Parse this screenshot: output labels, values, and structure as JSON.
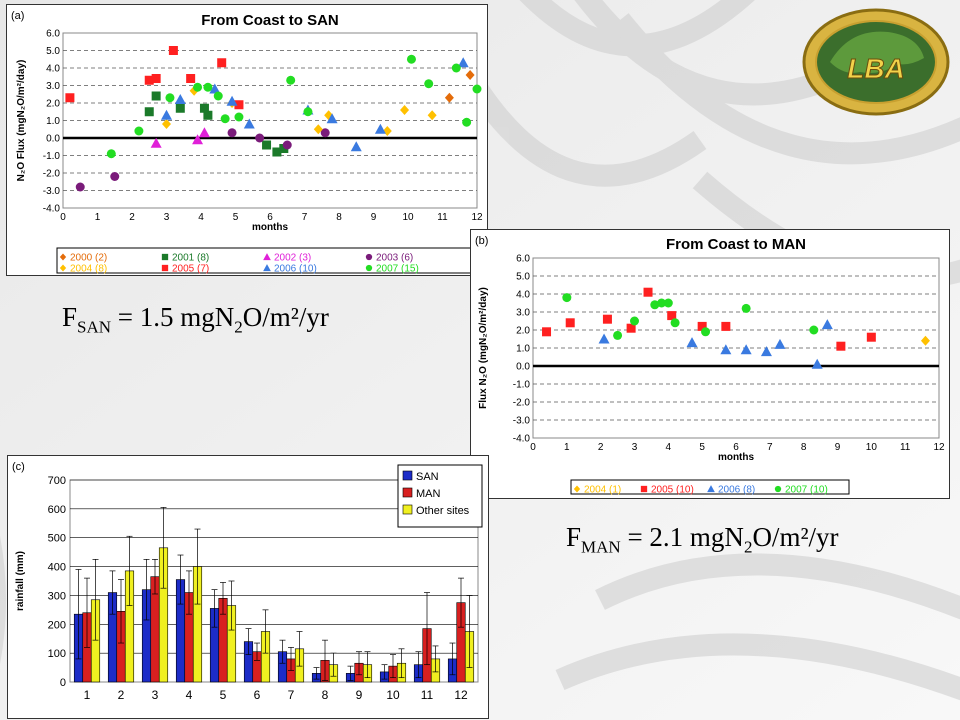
{
  "colors": {
    "s2000": "#e46c0a",
    "s2001": "#1b7a2a",
    "s2002": "#e020d8",
    "s2003": "#7a1b7a",
    "s2004": "#ffc000",
    "s2005": "#ff2020",
    "s2006": "#3a7ae0",
    "s2007": "#22dd22",
    "rain_san": "#1c2cc8",
    "rain_man": "#d82020",
    "rain_other": "#f0f020"
  },
  "logo": {
    "text": "LBA",
    "icon": "lba-amazon-logo"
  },
  "flux_san": {
    "main": "F",
    "sub": "SAN",
    "value": " = 1.5 mgN",
    "sub2": "2",
    "unit": "O/m²/yr"
  },
  "flux_man": {
    "main": "F",
    "sub": "MAN",
    "value": " = 2.1 mgN",
    "sub2": "2",
    "unit": "O/m²/yr"
  },
  "chart_data": [
    {
      "type": "scatter",
      "panel_label": "(a)",
      "title": "From Coast to SAN",
      "xlabel": "months",
      "ylabel": "N₂O Flux (mgN₂O/m²/day)",
      "xlim": [
        0,
        12
      ],
      "ylim": [
        -4.0,
        6.0
      ],
      "xticks": [
        0,
        1,
        2,
        3,
        4,
        5,
        6,
        7,
        8,
        9,
        10,
        11,
        12
      ],
      "yticks": [
        "6.0",
        "5.0",
        "4.0",
        "3.0",
        "2.0",
        "1.0",
        "0.0",
        "-1.0",
        "-2.0",
        "-3.0",
        "-4.0"
      ],
      "grid": true,
      "legend_position": "bottom",
      "series": [
        {
          "name": "2000 (2)",
          "color_key": "s2000",
          "marker": "diamond",
          "points": [
            [
              11.2,
              2.3
            ],
            [
              11.8,
              3.6
            ]
          ]
        },
        {
          "name": "2001 (8)",
          "color_key": "s2001",
          "marker": "square",
          "points": [
            [
              2.5,
              1.5
            ],
            [
              2.7,
              2.4
            ],
            [
              3.4,
              1.7
            ],
            [
              4.1,
              1.7
            ],
            [
              4.2,
              1.3
            ],
            [
              5.9,
              -0.4
            ],
            [
              6.2,
              -0.8
            ],
            [
              6.4,
              -0.6
            ]
          ]
        },
        {
          "name": "2002 (3)",
          "color_key": "s2002",
          "marker": "triangle",
          "points": [
            [
              2.7,
              -0.3
            ],
            [
              3.9,
              -0.1
            ],
            [
              4.1,
              0.3
            ]
          ]
        },
        {
          "name": "2003 (6)",
          "color_key": "s2003",
          "marker": "circle",
          "points": [
            [
              0.5,
              -2.8
            ],
            [
              1.5,
              -2.2
            ],
            [
              4.9,
              0.3
            ],
            [
              5.7,
              0.0
            ],
            [
              6.5,
              -0.4
            ],
            [
              7.6,
              0.3
            ]
          ]
        },
        {
          "name": "2004 (8)",
          "color_key": "s2004",
          "marker": "diamond",
          "points": [
            [
              3.0,
              0.8
            ],
            [
              3.8,
              2.7
            ],
            [
              4.9,
              2.0
            ],
            [
              7.4,
              0.5
            ],
            [
              7.7,
              1.3
            ],
            [
              9.4,
              0.4
            ],
            [
              9.9,
              1.6
            ],
            [
              10.7,
              1.3
            ]
          ]
        },
        {
          "name": "2005 (7)",
          "color_key": "s2005",
          "marker": "square",
          "points": [
            [
              0.2,
              2.3
            ],
            [
              2.5,
              3.3
            ],
            [
              2.7,
              3.4
            ],
            [
              3.2,
              5.0
            ],
            [
              3.7,
              3.4
            ],
            [
              4.6,
              4.3
            ],
            [
              5.1,
              1.9
            ]
          ]
        },
        {
          "name": "2006 (10)",
          "color_key": "s2006",
          "marker": "triangle",
          "points": [
            [
              3.0,
              1.3
            ],
            [
              3.4,
              2.2
            ],
            [
              4.4,
              2.8
            ],
            [
              4.9,
              2.1
            ],
            [
              5.4,
              0.8
            ],
            [
              7.1,
              1.6
            ],
            [
              7.8,
              1.1
            ],
            [
              8.5,
              -0.5
            ],
            [
              9.2,
              0.5
            ],
            [
              11.6,
              4.3
            ]
          ]
        },
        {
          "name": "2007 (15)",
          "color_key": "s2007",
          "marker": "circle",
          "points": [
            [
              1.4,
              -0.9
            ],
            [
              2.2,
              0.4
            ],
            [
              3.1,
              2.3
            ],
            [
              3.9,
              2.9
            ],
            [
              4.2,
              2.9
            ],
            [
              4.5,
              2.4
            ],
            [
              4.7,
              1.1
            ],
            [
              5.1,
              1.2
            ],
            [
              6.6,
              3.3
            ],
            [
              7.1,
              1.5
            ],
            [
              10.1,
              4.5
            ],
            [
              10.6,
              3.1
            ],
            [
              11.4,
              4.0
            ],
            [
              11.7,
              0.9
            ],
            [
              12.0,
              2.8
            ]
          ]
        }
      ]
    },
    {
      "type": "scatter",
      "panel_label": "(b)",
      "title": "From Coast to MAN",
      "xlabel": "months",
      "ylabel": "Flux N₂O (mgN₂O/m²/day)",
      "xlim": [
        0,
        12
      ],
      "ylim": [
        -4.0,
        6.0
      ],
      "xticks": [
        0,
        1,
        2,
        3,
        4,
        5,
        6,
        7,
        8,
        9,
        10,
        11,
        12
      ],
      "yticks": [
        "6.0",
        "5.0",
        "4.0",
        "3.0",
        "2.0",
        "1.0",
        "0.0",
        "-1.0",
        "-2.0",
        "-3.0",
        "-4.0"
      ],
      "grid": true,
      "legend_position": "bottom",
      "series": [
        {
          "name": "2004 (1)",
          "color_key": "s2004",
          "marker": "diamond",
          "points": [
            [
              11.6,
              1.4
            ]
          ]
        },
        {
          "name": "2005 (10)",
          "color_key": "s2005",
          "marker": "square",
          "points": [
            [
              0.4,
              1.9
            ],
            [
              1.1,
              2.4
            ],
            [
              2.2,
              2.6
            ],
            [
              2.9,
              2.1
            ],
            [
              3.4,
              4.1
            ],
            [
              4.1,
              2.8
            ],
            [
              5.0,
              2.2
            ],
            [
              5.7,
              2.2
            ],
            [
              9.1,
              1.1
            ],
            [
              10.0,
              1.6
            ]
          ]
        },
        {
          "name": "2006 (8)",
          "color_key": "s2006",
          "marker": "triangle",
          "points": [
            [
              2.1,
              1.5
            ],
            [
              4.7,
              1.3
            ],
            [
              5.7,
              0.9
            ],
            [
              6.3,
              0.9
            ],
            [
              6.9,
              0.8
            ],
            [
              7.3,
              1.2
            ],
            [
              8.4,
              0.1
            ],
            [
              8.7,
              2.3
            ]
          ]
        },
        {
          "name": "2007 (10)",
          "color_key": "s2007",
          "marker": "circle",
          "points": [
            [
              1.0,
              3.8
            ],
            [
              2.5,
              1.7
            ],
            [
              3.0,
              2.5
            ],
            [
              3.6,
              3.4
            ],
            [
              3.8,
              3.5
            ],
            [
              4.0,
              3.5
            ],
            [
              4.2,
              2.4
            ],
            [
              5.1,
              1.9
            ],
            [
              6.3,
              3.2
            ],
            [
              8.3,
              2.0
            ]
          ]
        }
      ]
    },
    {
      "type": "bar",
      "panel_label": "(c)",
      "title": "",
      "xlabel": "",
      "ylabel": "rainfall (mm)",
      "categories": [
        "1",
        "2",
        "3",
        "4",
        "5",
        "6",
        "7",
        "8",
        "9",
        "10",
        "11",
        "12"
      ],
      "ylim": [
        0,
        700
      ],
      "yticks": [
        "700",
        "600",
        "500",
        "400",
        "300",
        "200",
        "100",
        "0"
      ],
      "grid": true,
      "legend_position": "top-right",
      "series": [
        {
          "name": "SAN",
          "color_key": "rain_san",
          "values": [
            235,
            310,
            320,
            355,
            255,
            140,
            105,
            30,
            30,
            35,
            60,
            80
          ],
          "errors": [
            155,
            75,
            105,
            85,
            65,
            45,
            40,
            20,
            25,
            25,
            45,
            55
          ]
        },
        {
          "name": "MAN",
          "color_key": "rain_man",
          "values": [
            240,
            245,
            365,
            310,
            290,
            105,
            80,
            75,
            65,
            55,
            185,
            275
          ],
          "errors": [
            120,
            110,
            60,
            75,
            55,
            30,
            40,
            70,
            40,
            40,
            125,
            85
          ]
        },
        {
          "name": "Other sites",
          "color_key": "rain_other",
          "values": [
            285,
            385,
            465,
            400,
            265,
            175,
            115,
            60,
            60,
            65,
            80,
            175
          ],
          "errors": [
            140,
            120,
            140,
            130,
            85,
            75,
            60,
            40,
            45,
            50,
            45,
            125
          ]
        }
      ]
    }
  ]
}
